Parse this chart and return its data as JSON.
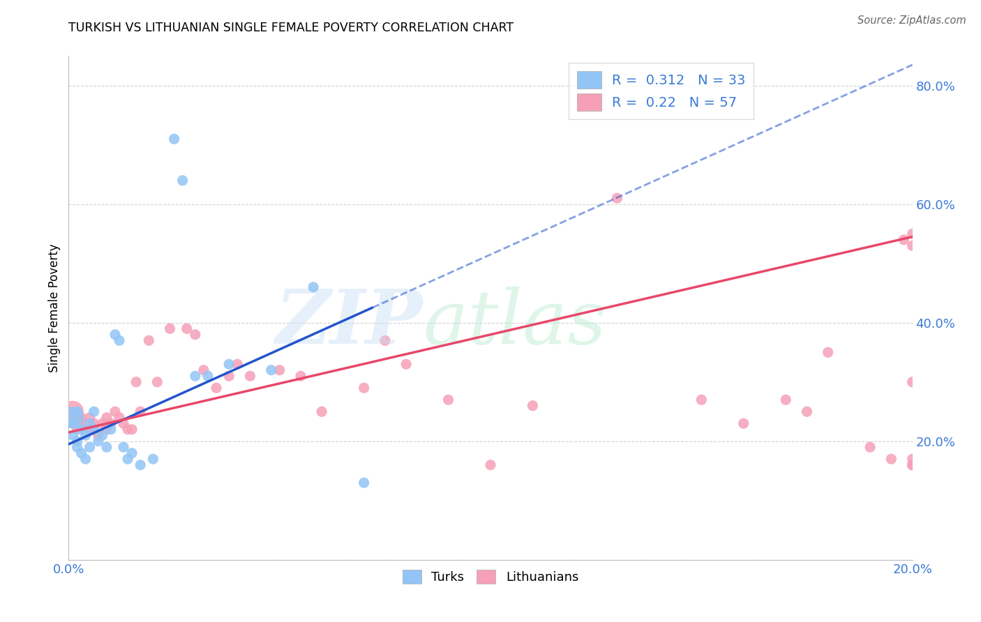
{
  "title": "TURKISH VS LITHUANIAN SINGLE FEMALE POVERTY CORRELATION CHART",
  "source": "Source: ZipAtlas.com",
  "ylabel": "Single Female Poverty",
  "xlim": [
    0.0,
    0.2
  ],
  "ylim": [
    0.0,
    0.85
  ],
  "yticks": [
    0.2,
    0.4,
    0.6,
    0.8
  ],
  "ytick_labels": [
    "20.0%",
    "40.0%",
    "60.0%",
    "80.0%"
  ],
  "xtick_labels": [
    "0.0%",
    "20.0%"
  ],
  "turks_color": "#92c5f5",
  "lithuanians_color": "#f5a0b8",
  "turks_line_color": "#2255cc",
  "lithuanians_line_color": "#e8476a",
  "R_turks": 0.312,
  "N_turks": 33,
  "R_lithuanians": 0.22,
  "N_lithuanians": 57,
  "turks_line_intercept": 0.195,
  "turks_line_slope": 3.2,
  "turks_line_solid_end": 0.072,
  "lith_line_intercept": 0.215,
  "lith_line_slope": 1.65,
  "marker_size": 120,
  "turks_x": [
    0.001,
    0.001,
    0.001,
    0.002,
    0.002,
    0.002,
    0.003,
    0.003,
    0.004,
    0.004,
    0.005,
    0.005,
    0.006,
    0.006,
    0.007,
    0.008,
    0.009,
    0.01,
    0.011,
    0.012,
    0.013,
    0.014,
    0.015,
    0.017,
    0.02,
    0.025,
    0.027,
    0.03,
    0.033,
    0.038,
    0.048,
    0.058,
    0.07
  ],
  "turks_y": [
    0.24,
    0.23,
    0.21,
    0.25,
    0.2,
    0.19,
    0.22,
    0.18,
    0.21,
    0.17,
    0.23,
    0.19,
    0.25,
    0.22,
    0.2,
    0.21,
    0.19,
    0.22,
    0.38,
    0.37,
    0.19,
    0.17,
    0.18,
    0.16,
    0.17,
    0.71,
    0.64,
    0.31,
    0.31,
    0.33,
    0.32,
    0.46,
    0.13
  ],
  "turks_size_big_idx": [
    0
  ],
  "turks_big_size": 500,
  "lith_x": [
    0.001,
    0.001,
    0.002,
    0.002,
    0.003,
    0.003,
    0.004,
    0.005,
    0.005,
    0.006,
    0.006,
    0.007,
    0.008,
    0.009,
    0.009,
    0.01,
    0.011,
    0.012,
    0.013,
    0.014,
    0.015,
    0.016,
    0.017,
    0.019,
    0.021,
    0.024,
    0.028,
    0.03,
    0.032,
    0.035,
    0.038,
    0.04,
    0.043,
    0.05,
    0.055,
    0.06,
    0.07,
    0.075,
    0.08,
    0.09,
    0.1,
    0.11,
    0.13,
    0.15,
    0.16,
    0.17,
    0.175,
    0.18,
    0.19,
    0.195,
    0.198,
    0.2,
    0.2,
    0.2,
    0.2,
    0.2,
    0.2
  ],
  "lith_y": [
    0.25,
    0.24,
    0.23,
    0.22,
    0.23,
    0.24,
    0.22,
    0.24,
    0.22,
    0.23,
    0.22,
    0.21,
    0.23,
    0.24,
    0.22,
    0.23,
    0.25,
    0.24,
    0.23,
    0.22,
    0.22,
    0.3,
    0.25,
    0.37,
    0.3,
    0.39,
    0.39,
    0.38,
    0.32,
    0.29,
    0.31,
    0.33,
    0.31,
    0.32,
    0.31,
    0.25,
    0.29,
    0.37,
    0.33,
    0.27,
    0.16,
    0.26,
    0.61,
    0.27,
    0.23,
    0.27,
    0.25,
    0.35,
    0.19,
    0.17,
    0.54,
    0.55,
    0.3,
    0.17,
    0.16,
    0.53,
    0.16
  ],
  "lith_size_big_idx": [
    0,
    1
  ],
  "lith_big_size": 500
}
